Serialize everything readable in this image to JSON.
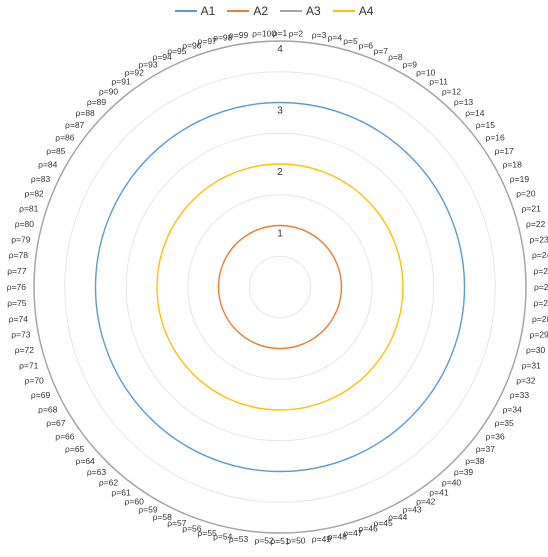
{
  "chart_data": {
    "type": "polar-line",
    "title": "",
    "legend_position": "top-center",
    "radial_axis": {
      "min": 0,
      "max": 4,
      "ticks": [
        1,
        2,
        3,
        4
      ]
    },
    "angular_categories": [
      "ρ=1",
      "ρ=2",
      "ρ=3",
      "ρ=4",
      "ρ=5",
      "ρ=6",
      "ρ=7",
      "ρ=8",
      "ρ=9",
      "ρ=10",
      "ρ=11",
      "ρ=12",
      "ρ=13",
      "ρ=14",
      "ρ=15",
      "ρ=16",
      "ρ=17",
      "ρ=18",
      "ρ=19",
      "ρ=20",
      "ρ=21",
      "ρ=22",
      "ρ=23",
      "ρ=24",
      "ρ=25",
      "ρ=26",
      "ρ=27",
      "ρ=28",
      "ρ=29",
      "ρ=30",
      "ρ=31",
      "ρ=32",
      "ρ=33",
      "ρ=34",
      "ρ=35",
      "ρ=36",
      "ρ=37",
      "ρ=38",
      "ρ=39",
      "ρ=40",
      "ρ=41",
      "ρ=42",
      "ρ=43",
      "ρ=44",
      "ρ=45",
      "ρ=46",
      "ρ=47",
      "ρ=48",
      "ρ=49",
      "ρ=50",
      "ρ=51",
      "ρ=52",
      "ρ=53",
      "ρ=54",
      "ρ=55",
      "ρ=56",
      "ρ=57",
      "ρ=58",
      "ρ=59",
      "ρ=60",
      "ρ=61",
      "ρ=62",
      "ρ=63",
      "ρ=64",
      "ρ=65",
      "ρ=66",
      "ρ=67",
      "ρ=68",
      "ρ=69",
      "ρ=70",
      "ρ=71",
      "ρ=72",
      "ρ=73",
      "ρ=74",
      "ρ=75",
      "ρ=76",
      "ρ=77",
      "ρ=78",
      "ρ=79",
      "ρ=80",
      "ρ=81",
      "ρ=82",
      "ρ=83",
      "ρ=84",
      "ρ=85",
      "ρ=86",
      "ρ=87",
      "ρ=88",
      "ρ=89",
      "ρ=90",
      "ρ=91",
      "ρ=92",
      "ρ=93",
      "ρ=94",
      "ρ=95",
      "ρ=96",
      "ρ=97",
      "ρ=98",
      "ρ=99",
      "ρ=100"
    ],
    "series": [
      {
        "name": "A1",
        "color": "#5b9bd5",
        "value": 3,
        "values_note": "constant across all categories"
      },
      {
        "name": "A2",
        "color": "#ed7d31",
        "value": 1
      },
      {
        "name": "A3",
        "color": "#a5a5a5",
        "value": 4
      },
      {
        "name": "A4",
        "color": "#ffc000",
        "value": 2
      }
    ]
  }
}
